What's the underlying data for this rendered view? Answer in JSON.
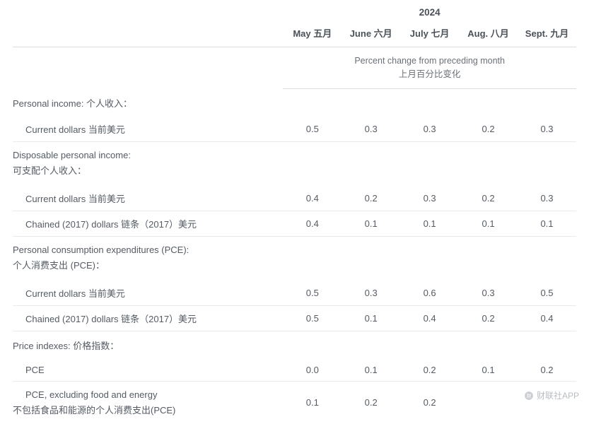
{
  "year": "2024",
  "columns": [
    "May 五月",
    "June 六月",
    "July 七月",
    "Aug. 八月",
    "Sept. 九月"
  ],
  "subheader": {
    "line1": "Percent change from preceding month",
    "line2": "上月百分比变化"
  },
  "sections": [
    {
      "label": "Personal income: 个人收入：",
      "multiline": false,
      "rows": [
        {
          "label": "Current dollars 当前美元",
          "values": [
            "0.5",
            "0.3",
            "0.3",
            "0.2",
            "0.3"
          ]
        }
      ]
    },
    {
      "label": "Disposable personal income:\n可支配个人收入：",
      "multiline": true,
      "rows": [
        {
          "label": "Current dollars 当前美元",
          "values": [
            "0.4",
            "0.2",
            "0.3",
            "0.2",
            "0.3"
          ]
        },
        {
          "label": "Chained (2017) dollars 链条（2017）美元",
          "values": [
            "0.4",
            "0.1",
            "0.1",
            "0.1",
            "0.1"
          ]
        }
      ]
    },
    {
      "label": "Personal consumption expenditures (PCE):\n个人消费支出 (PCE)：",
      "multiline": true,
      "rows": [
        {
          "label": "Current dollars 当前美元",
          "values": [
            "0.5",
            "0.3",
            "0.6",
            "0.3",
            "0.5"
          ]
        },
        {
          "label": "Chained (2017) dollars 链条（2017）美元",
          "values": [
            "0.5",
            "0.1",
            "0.4",
            "0.2",
            "0.4"
          ]
        }
      ]
    },
    {
      "label": "Price indexes: 价格指数：",
      "multiline": false,
      "rows": [
        {
          "label": "PCE",
          "values": [
            "0.0",
            "0.1",
            "0.2",
            "0.1",
            "0.2"
          ]
        },
        {
          "label": "PCE, excluding food and energy\n不包括食品和能源的个人消费支出(PCE)",
          "values": [
            "0.1",
            "0.2",
            "0.2",
            "",
            ""
          ],
          "noindent_secondline": true,
          "noborder": true
        }
      ]
    }
  ],
  "watermark": "财联社APP",
  "colors": {
    "text": "#555b63",
    "header": "#4b5158",
    "border": "#d9dde0",
    "row_border": "#e8ebed",
    "background": "#ffffff",
    "watermark": "#b9bdc2"
  },
  "font_sizes": {
    "body": 13,
    "subheader": 12.5,
    "year": 13.5
  }
}
